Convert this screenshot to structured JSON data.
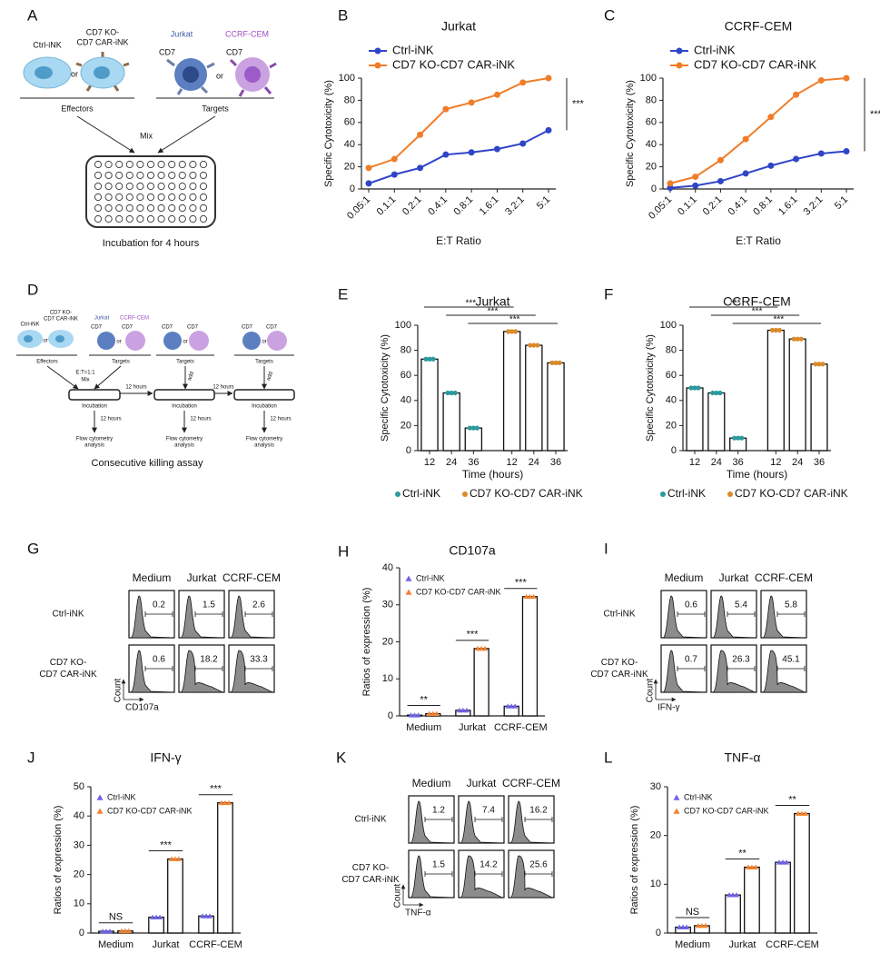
{
  "chart_data": [
    {
      "letter": "B",
      "type": "line",
      "title": "Jurkat",
      "xlabel": "E:T Ratio",
      "ylabel": "Specific Cytotoxicity (%)",
      "categories": [
        "0.05:1",
        "0.1:1",
        "0.2:1",
        "0.4:1",
        "0.8:1",
        "1.6:1",
        "3.2:1",
        "5:1"
      ],
      "series": [
        {
          "name": "Ctrl-iNK",
          "color": "#2f45c8",
          "values": [
            5,
            13,
            19,
            31,
            33,
            36,
            41,
            53
          ]
        },
        {
          "name": "CD7 KO-CD7 CAR-iNK",
          "color": "#f07d2a",
          "values": [
            19,
            27,
            49,
            72,
            78,
            85,
            96,
            100
          ]
        }
      ],
      "ylim": [
        0,
        100
      ],
      "yticks": [
        0,
        20,
        40,
        60,
        80,
        100
      ],
      "legend": "top-left",
      "marker": "circle",
      "annotation": "***"
    },
    {
      "letter": "C",
      "type": "line",
      "title": "CCRF-CEM",
      "xlabel": "E:T Ratio",
      "ylabel": "Specific Cytotoxicity (%)",
      "categories": [
        "0.05:1",
        "0.1:1",
        "0.2:1",
        "0.4:1",
        "0.8:1",
        "1.6:1",
        "3.2:1",
        "5:1"
      ],
      "series": [
        {
          "name": "Ctrl-iNK",
          "color": "#2f45c8",
          "values": [
            1,
            3,
            7,
            14,
            21,
            27,
            32,
            34
          ]
        },
        {
          "name": "CD7 KO-CD7 CAR-iNK",
          "color": "#f07d2a",
          "values": [
            5,
            11,
            26,
            45,
            65,
            85,
            98,
            100
          ]
        }
      ],
      "ylim": [
        0,
        100
      ],
      "yticks": [
        0,
        20,
        40,
        60,
        80,
        100
      ],
      "legend": "top-left",
      "marker": "circle",
      "annotation": "***"
    },
    {
      "letter": "E",
      "type": "bar",
      "grouping": "by-series",
      "title": "Jurkat",
      "xlabel": "Time (hours)",
      "ylabel": "Specific Cytotoxicity (%)",
      "categories": [
        "12",
        "24",
        "36"
      ],
      "series": [
        {
          "name": "Ctrl-iNK",
          "color": "#2a9a9e",
          "values": [
            73,
            46,
            18
          ]
        },
        {
          "name": "CD7 KO-CD7 CAR-iNK",
          "color": "#d98a2b",
          "values": [
            95,
            84,
            70
          ]
        }
      ],
      "ylim": [
        0,
        100
      ],
      "yticks": [
        0,
        20,
        40,
        60,
        80,
        100
      ],
      "legend": "bottom",
      "marker": "circle",
      "significance": [
        "***",
        "***",
        "***"
      ]
    },
    {
      "letter": "F",
      "type": "bar",
      "grouping": "by-series",
      "title": "CCRF-CEM",
      "xlabel": "Time (hours)",
      "ylabel": "Specific Cytotoxicity (%)",
      "categories": [
        "12",
        "24",
        "36"
      ],
      "series": [
        {
          "name": "Ctrl-iNK",
          "color": "#2a9a9e",
          "values": [
            50,
            46,
            10
          ]
        },
        {
          "name": "CD7 KO-CD7 CAR-iNK",
          "color": "#d98a2b",
          "values": [
            96,
            89,
            69
          ]
        }
      ],
      "ylim": [
        0,
        100
      ],
      "yticks": [
        0,
        20,
        40,
        60,
        80,
        100
      ],
      "legend": "bottom",
      "marker": "circle",
      "significance": [
        "***",
        "***",
        "***"
      ]
    },
    {
      "letter": "H",
      "type": "bar",
      "grouping": "by-category",
      "title": "CD107a",
      "ylabel": "Ratios of expression (%)",
      "categories": [
        "Medium",
        "Jurkat",
        "CCRF-CEM"
      ],
      "series": [
        {
          "name": "Ctrl-iNK",
          "color": "#6f63e8",
          "values": [
            0.2,
            1.5,
            2.6
          ]
        },
        {
          "name": "CD7 KO-CD7 CAR-iNK",
          "color": "#f5822e",
          "values": [
            0.6,
            18.2,
            32.2
          ]
        }
      ],
      "ylim": [
        0,
        40
      ],
      "yticks": [
        0,
        10,
        20,
        30,
        40
      ],
      "legend": "top-left",
      "marker": "triangle",
      "significance": [
        "**",
        "***",
        "***"
      ]
    },
    {
      "letter": "J",
      "type": "bar",
      "grouping": "by-category",
      "title": "IFN-γ",
      "ylabel": "Ratios of expression (%)",
      "categories": [
        "Medium",
        "Jurkat",
        "CCRF-CEM"
      ],
      "series": [
        {
          "name": "Ctrl-iNK",
          "color": "#6f63e8",
          "values": [
            0.6,
            5.4,
            5.8
          ]
        },
        {
          "name": "CD7 KO-CD7 CAR-iNK",
          "color": "#f5822e",
          "values": [
            0.7,
            25.3,
            44.5
          ]
        }
      ],
      "ylim": [
        0,
        50
      ],
      "yticks": [
        0,
        10,
        20,
        30,
        40,
        50
      ],
      "legend": "top-left",
      "marker": "triangle",
      "significance": [
        "NS",
        "***",
        "***"
      ]
    },
    {
      "letter": "L",
      "type": "bar",
      "grouping": "by-category",
      "title": "TNF-α",
      "ylabel": "Ratios of expression (%)",
      "categories": [
        "Medium",
        "Jurkat",
        "CCRF-CEM"
      ],
      "series": [
        {
          "name": "Ctrl-iNK",
          "color": "#6f63e8",
          "values": [
            1.2,
            7.8,
            14.5
          ]
        },
        {
          "name": "CD7 KO-CD7 CAR-iNK",
          "color": "#f5822e",
          "values": [
            1.5,
            13.5,
            24.5
          ]
        }
      ],
      "ylim": [
        0,
        30
      ],
      "yticks": [
        0,
        10,
        20,
        30
      ],
      "legend": "top-left",
      "marker": "triangle",
      "significance": [
        "NS",
        "**",
        "**"
      ]
    }
  ],
  "flow_panels": [
    {
      "letter": "G",
      "columns": [
        "Medium",
        "Jurkat",
        "CCRF-CEM"
      ],
      "rows": [
        [
          "Ctrl-iNK"
        ],
        [
          "CD7 KO-",
          "CD7 CAR-iNK"
        ]
      ],
      "values": [
        [
          0.2,
          1.5,
          2.6
        ],
        [
          0.6,
          18.2,
          33.3
        ]
      ],
      "xlabel": "CD107a",
      "ylabel": "Count"
    },
    {
      "letter": "I",
      "columns": [
        "Medium",
        "Jurkat",
        "CCRF-CEM"
      ],
      "rows": [
        [
          "Ctrl-iNK"
        ],
        [
          "CD7 KO-",
          "CD7 CAR-iNK"
        ]
      ],
      "values": [
        [
          0.6,
          5.4,
          5.8
        ],
        [
          0.7,
          26.3,
          45.1
        ]
      ],
      "xlabel": "IFN-γ",
      "ylabel": "Count"
    },
    {
      "letter": "K",
      "columns": [
        "Medium",
        "Jurkat",
        "CCRF-CEM"
      ],
      "rows": [
        [
          "Ctrl-iNK"
        ],
        [
          "CD7 KO-",
          "CD7 CAR-iNK"
        ]
      ],
      "values": [
        [
          1.2,
          7.4,
          16.2
        ],
        [
          1.5,
          14.2,
          25.6
        ]
      ],
      "xlabel": "TNF-α",
      "ylabel": "Count"
    }
  ],
  "diagram_a": {
    "letter": "A",
    "effector_labels": [
      "Ctrl-iNK",
      "CD7 KO-",
      "CD7 CAR-iNK"
    ],
    "or": "or",
    "target_labels": [
      "Jurkat",
      "CCRF-CEM"
    ],
    "marker": "CD7",
    "effectors": "Effectors",
    "targets": "Targets",
    "mix": "Mix",
    "caption": "Incubation for 4 hours"
  },
  "diagram_d": {
    "letter": "D",
    "effector_labels": [
      "Ctrl-iNK",
      "CD7 KO-",
      "CD7 CAR-iNK"
    ],
    "or": "or",
    "target_labels": [
      "Jurkat",
      "CCRF-CEM"
    ],
    "marker": "CD7",
    "effectors": "Effectors",
    "targets": "Targets",
    "ratio": "E:T=1:1",
    "mix": "Mix",
    "add": "add",
    "incubation": "Incubation",
    "interval": "12 hours",
    "analysis": [
      "Flow cytometry",
      "analysis"
    ],
    "caption": "Consecutive killing assay"
  }
}
